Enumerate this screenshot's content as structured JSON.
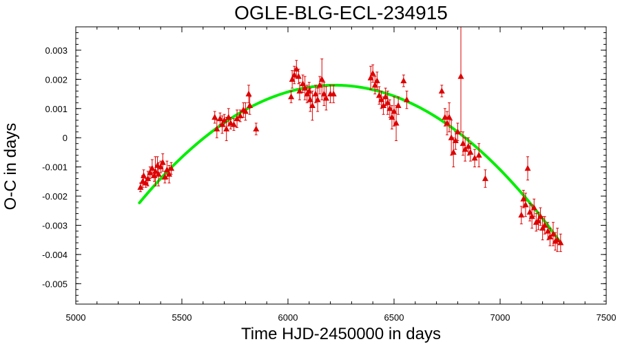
{
  "chart_data": {
    "type": "scatter",
    "title": "OGLE-BLG-ECL-234915",
    "xlabel": "Time HJD-2450000 in days",
    "ylabel": "O-C in days",
    "xlim": [
      5000,
      7500
    ],
    "ylim": [
      -0.0057,
      0.0038
    ],
    "x_ticks": [
      5000,
      5500,
      6000,
      6500,
      7000,
      7500
    ],
    "x_tick_labels": [
      "5000",
      "5500",
      "6000",
      "6500",
      "7000",
      "7500"
    ],
    "y_ticks": [
      0.003,
      0.002,
      0.001,
      0,
      -0.001,
      -0.002,
      -0.003,
      -0.004,
      -0.005
    ],
    "y_tick_labels": [
      "0.003",
      "0.002",
      "0.001",
      "0",
      "-0.001",
      "-0.002",
      "-0.003",
      "-0.004",
      "-0.005"
    ],
    "x_minor_step": 100,
    "y_minor_step": 0.0002,
    "grid": false,
    "legend": "none",
    "colors": {
      "points": "#dd0000",
      "fit": "#00ee00",
      "axes": "#000000"
    },
    "series": [
      {
        "kind": "points_with_errorbars",
        "marker": "triangle",
        "points": [
          [
            5305,
            -0.0017,
            0.00015
          ],
          [
            5315,
            -0.0015,
            0.0002
          ],
          [
            5320,
            -0.0013,
            0.0002
          ],
          [
            5330,
            -0.00155,
            0.00015
          ],
          [
            5340,
            -0.0014,
            0.00025
          ],
          [
            5350,
            -0.0012,
            0.0002
          ],
          [
            5360,
            -0.00105,
            0.0003
          ],
          [
            5370,
            -0.0013,
            0.0002
          ],
          [
            5375,
            -0.00115,
            0.0005
          ],
          [
            5385,
            -0.00095,
            0.0003
          ],
          [
            5390,
            -0.00125,
            0.0004
          ],
          [
            5400,
            -0.001,
            0.0002
          ],
          [
            5410,
            -0.00085,
            0.0003
          ],
          [
            5420,
            -0.00135,
            0.0002
          ],
          [
            5430,
            -0.0011,
            0.0003
          ],
          [
            5440,
            -0.00125,
            0.0003
          ],
          [
            5450,
            -0.00105,
            0.0002
          ],
          [
            5655,
            0.0007,
            0.0002
          ],
          [
            5665,
            0.0003,
            0.0003
          ],
          [
            5680,
            0.00065,
            0.0002
          ],
          [
            5690,
            0.00045,
            0.0003
          ],
          [
            5700,
            0.0006,
            0.0002
          ],
          [
            5710,
            0.0003,
            0.0004
          ],
          [
            5720,
            0.0007,
            0.0003
          ],
          [
            5730,
            0.0005,
            0.0002
          ],
          [
            5745,
            0.00045,
            0.0002
          ],
          [
            5760,
            0.00065,
            0.0003
          ],
          [
            5775,
            0.00075,
            0.0002
          ],
          [
            5790,
            0.00095,
            0.00025
          ],
          [
            5800,
            0.0009,
            0.0003
          ],
          [
            5815,
            0.0015,
            0.0003
          ],
          [
            5820,
            0.0011,
            0.0003
          ],
          [
            5850,
            0.0003,
            0.0002
          ],
          [
            6015,
            0.0014,
            0.0002
          ],
          [
            6020,
            0.002,
            0.0003
          ],
          [
            6030,
            0.00215,
            0.0003
          ],
          [
            6040,
            0.00235,
            0.0003
          ],
          [
            6050,
            0.0021,
            0.00025
          ],
          [
            6055,
            0.0016,
            0.0003
          ],
          [
            6070,
            0.00185,
            0.0003
          ],
          [
            6080,
            0.0017,
            0.0004
          ],
          [
            6090,
            0.0015,
            0.0003
          ],
          [
            6100,
            0.0016,
            0.0003
          ],
          [
            6105,
            0.0013,
            0.0004
          ],
          [
            6115,
            0.0011,
            0.0005
          ],
          [
            6130,
            0.0015,
            0.0003
          ],
          [
            6140,
            0.0013,
            0.0004
          ],
          [
            6150,
            0.0018,
            0.0003
          ],
          [
            6160,
            0.002,
            0.0007
          ],
          [
            6170,
            0.0015,
            0.0004
          ],
          [
            6180,
            0.00135,
            0.0004
          ],
          [
            6200,
            0.0015,
            0.0003
          ],
          [
            6215,
            0.0015,
            0.0003
          ],
          [
            6390,
            0.00205,
            0.0004
          ],
          [
            6400,
            0.0022,
            0.0003
          ],
          [
            6410,
            0.0018,
            0.0003
          ],
          [
            6420,
            0.00195,
            0.0003
          ],
          [
            6430,
            0.00145,
            0.0003
          ],
          [
            6440,
            0.0013,
            0.0003
          ],
          [
            6450,
            0.0011,
            0.0003
          ],
          [
            6460,
            0.0014,
            0.0003
          ],
          [
            6470,
            0.0012,
            0.0004
          ],
          [
            6480,
            0.001,
            0.0003
          ],
          [
            6490,
            0.0007,
            0.0004
          ],
          [
            6500,
            0.0009,
            0.0005
          ],
          [
            6510,
            0.0005,
            0.0006
          ],
          [
            6520,
            0.0011,
            0.0003
          ],
          [
            6545,
            0.00195,
            0.0002
          ],
          [
            6560,
            0.0013,
            0.0003
          ],
          [
            6725,
            0.0016,
            0.0002
          ],
          [
            6740,
            0.0007,
            0.0003
          ],
          [
            6750,
            0.0005,
            0.0004
          ],
          [
            6760,
            0.0007,
            0.0005
          ],
          [
            6770,
            0.0,
            0.0006
          ],
          [
            6780,
            -0.0005,
            0.0005
          ],
          [
            6790,
            -0.0001,
            0.0003
          ],
          [
            6800,
            0.0002,
            0.0003
          ],
          [
            6815,
            0.0021,
            0.0019
          ],
          [
            6825,
            -0.0002,
            0.0004
          ],
          [
            6835,
            -0.0004,
            0.0004
          ],
          [
            6850,
            -0.0003,
            0.0003
          ],
          [
            6860,
            -0.0005,
            0.0003
          ],
          [
            6880,
            -0.0007,
            0.0003
          ],
          [
            6900,
            -0.0006,
            0.0004
          ],
          [
            6930,
            -0.0014,
            0.0003
          ],
          [
            7100,
            -0.00265,
            0.0003
          ],
          [
            7110,
            -0.0021,
            0.0003
          ],
          [
            7120,
            -0.0023,
            0.0004
          ],
          [
            7130,
            -0.00105,
            0.0004
          ],
          [
            7140,
            -0.00255,
            0.0003
          ],
          [
            7150,
            -0.0027,
            0.0004
          ],
          [
            7160,
            -0.0024,
            0.0003
          ],
          [
            7170,
            -0.0029,
            0.0003
          ],
          [
            7180,
            -0.00285,
            0.0003
          ],
          [
            7190,
            -0.0027,
            0.0003
          ],
          [
            7200,
            -0.0031,
            0.0004
          ],
          [
            7210,
            -0.003,
            0.0003
          ],
          [
            7225,
            -0.0032,
            0.0003
          ],
          [
            7235,
            -0.0034,
            0.0003
          ],
          [
            7250,
            -0.0033,
            0.0004
          ],
          [
            7260,
            -0.00355,
            0.0003
          ],
          [
            7270,
            -0.0035,
            0.0004
          ],
          [
            7285,
            -0.0036,
            0.0003
          ]
        ]
      },
      {
        "kind": "fit_curve",
        "model": "quadratic",
        "x_range": [
          5300,
          7285
        ],
        "vertex": [
          6220,
          0.0018
        ],
        "point_at_end": [
          7285,
          -0.0036
        ]
      }
    ]
  }
}
